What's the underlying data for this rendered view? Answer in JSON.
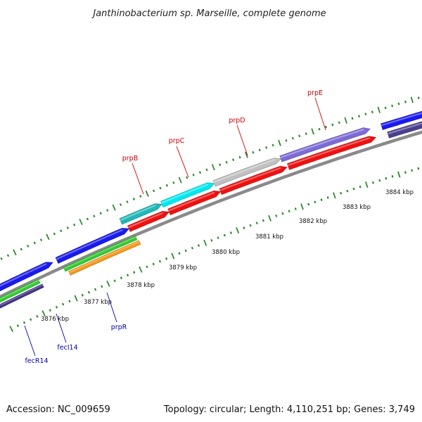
{
  "title": "Janthinobacterium sp. Marseille, complete genome",
  "footer": {
    "accession": "Accession: NC_009659",
    "topology": "Topology: circular; Length: 4,110,251 bp; Genes: 3,749"
  },
  "colors": {
    "backbone": "#8a8a8a",
    "tick": "#2e8b2e",
    "label_red": "#cc0000",
    "label_blue": "#0000b0"
  },
  "ticks": [
    {
      "kbp": 3876,
      "label": "3876 kbp"
    },
    {
      "kbp": 3877,
      "label": "3877 kbp"
    },
    {
      "kbp": 3878,
      "label": "3878 kbp"
    },
    {
      "kbp": 3879,
      "label": "3879 kbp"
    },
    {
      "kbp": 3880,
      "label": "3880 kbp"
    },
    {
      "kbp": 3881,
      "label": "3881 kbp"
    },
    {
      "kbp": 3882,
      "label": "3882 kbp"
    },
    {
      "kbp": 3883,
      "label": "3883 kbp"
    },
    {
      "kbp": 3884,
      "label": "3884 kbp"
    }
  ],
  "gene_labels": [
    {
      "name": "prpB",
      "color": "red"
    },
    {
      "name": "prpC",
      "color": "red"
    },
    {
      "name": "prpD",
      "color": "red"
    },
    {
      "name": "prpE",
      "color": "red"
    },
    {
      "name": "prpR",
      "color": "blue"
    },
    {
      "name": "fecI14",
      "color": "blue"
    },
    {
      "name": "fecR14",
      "color": "blue"
    }
  ]
}
